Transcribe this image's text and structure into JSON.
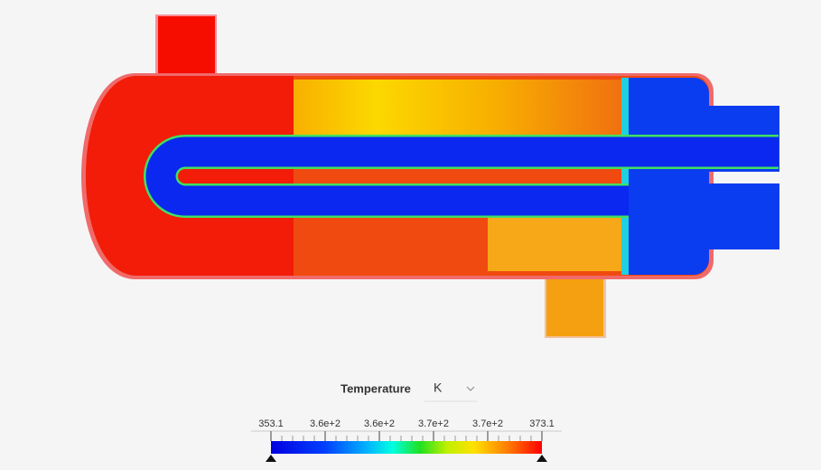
{
  "legend": {
    "title": "Temperature",
    "unit": "K",
    "range": [
      353.1,
      373.1
    ],
    "ticks": [
      353.1,
      {
        "value": 357.1,
        "label": "3.6e+2"
      },
      {
        "value": 361.1,
        "label": "3.6e+2"
      },
      {
        "value": 365.1,
        "label": "3.7e+2"
      },
      {
        "value": 369.1,
        "label": "3.7e+2"
      },
      373.1
    ]
  }
}
